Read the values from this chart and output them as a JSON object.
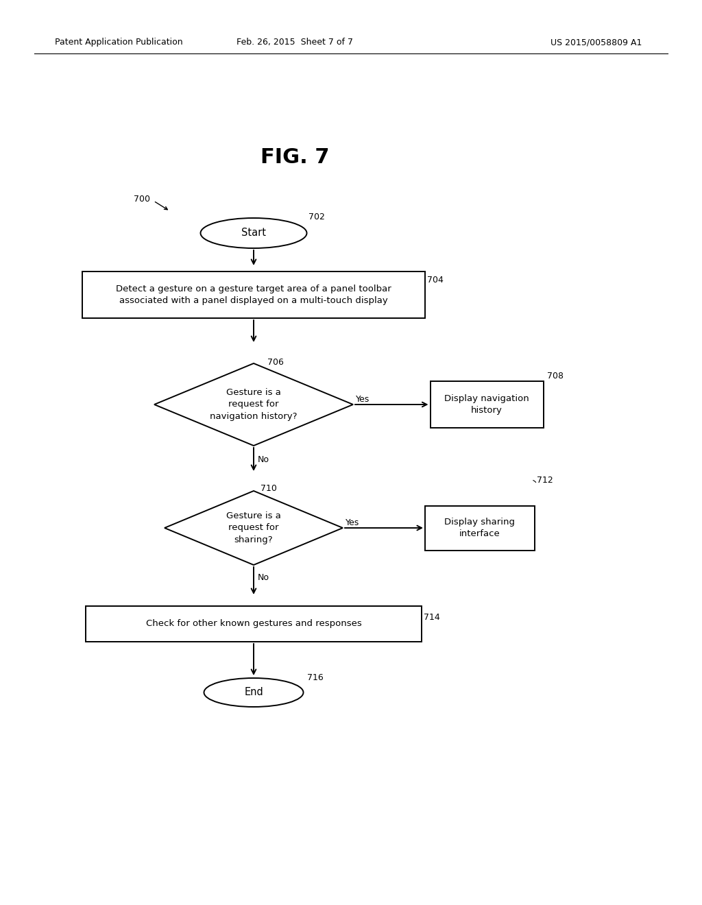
{
  "fig_title": "FIG. 7",
  "header_left": "Patent Application Publication",
  "header_mid": "Feb. 26, 2015  Sheet 7 of 7",
  "header_right": "US 2015/0058809 A1",
  "label_700": "700",
  "label_702": "702",
  "label_704": "704",
  "label_706": "706",
  "label_708": "708",
  "label_710": "710",
  "label_712": "712",
  "label_714": "714",
  "label_716": "716",
  "start_text": "Start",
  "end_text": "End",
  "node_704_text": "Detect a gesture on a gesture target area of a panel toolbar\nassociated with a panel displayed on a multi-touch display",
  "node_706_text": "Gesture is a\nrequest for\nnavigation history?",
  "node_708_text": "Display navigation\nhistory",
  "node_710_text": "Gesture is a\nrequest for\nsharing?",
  "node_712_text": "Display sharing\ninterface",
  "node_714_text": "Check for other known gestures and responses",
  "yes_text": "Yes",
  "no_text": "No",
  "bg_color": "#ffffff"
}
